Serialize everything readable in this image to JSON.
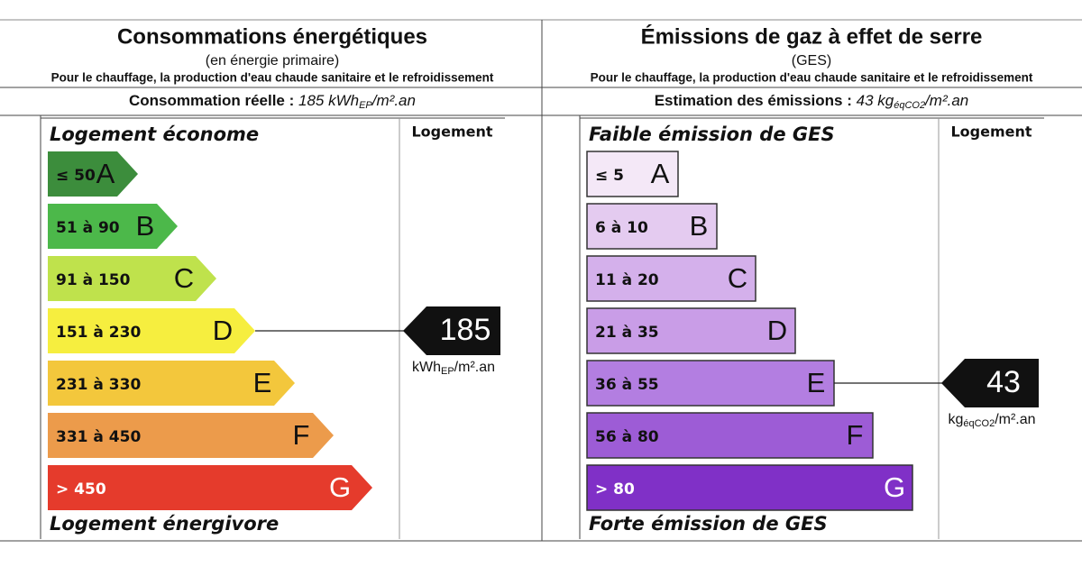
{
  "panels": [
    {
      "title": "Consommations énergétiques",
      "subtitle": "(en énergie primaire)",
      "note": "Pour le chauffage, la production d'eau chaude sanitaire et le refroidissement",
      "measure": {
        "label": "Consommation réelle : ",
        "value": "185 kWh",
        "sub": "EP",
        "unit": "/m².an"
      },
      "top_label": "Logement économe",
      "bottom_label": "Logement énergivore",
      "column_header": "Logement",
      "classes": [
        {
          "range": "≤ 50",
          "letter": "A"
        },
        {
          "range": "51 à 90",
          "letter": "B"
        },
        {
          "range": "91 à 150",
          "letter": "C"
        },
        {
          "range": "151 à 230",
          "letter": "D"
        },
        {
          "range": "231 à 330",
          "letter": "E"
        },
        {
          "range": "331 à 450",
          "letter": "F"
        },
        {
          "range": "> 450",
          "letter": "G"
        }
      ],
      "indicator": {
        "value": "185",
        "unit": "kWh",
        "sub": "EP",
        "unit_tail": "/m².an"
      }
    },
    {
      "title": "Émissions de gaz à effet de serre",
      "subtitle": "(GES)",
      "note": "Pour le chauffage, la production d'eau chaude sanitaire et le refroidissement",
      "measure": {
        "label": "Estimation des émissions : ",
        "value": "43 kg",
        "sub": "éqCO2",
        "unit": "/m².an"
      },
      "top_label": "Faible émission de GES",
      "bottom_label": "Forte émission de GES",
      "column_header": "Logement",
      "classes": [
        {
          "range": "≤ 5",
          "letter": "A"
        },
        {
          "range": "6 à 10",
          "letter": "B"
        },
        {
          "range": "11 à 20",
          "letter": "C"
        },
        {
          "range": "21 à 35",
          "letter": "D"
        },
        {
          "range": "36 à 55",
          "letter": "E"
        },
        {
          "range": "56 à 80",
          "letter": "F"
        },
        {
          "range": "> 80",
          "letter": "G"
        }
      ],
      "indicator": {
        "value": "43",
        "unit": "kg",
        "sub": "éqCO2",
        "unit_tail": "/m².an"
      }
    }
  ]
}
